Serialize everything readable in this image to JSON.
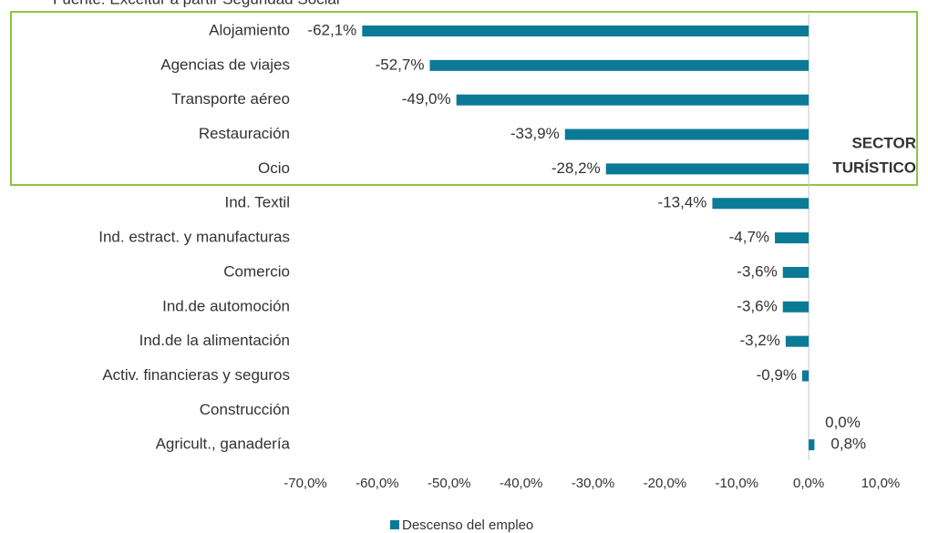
{
  "chart_data": {
    "type": "hbar",
    "source": "Fuente: Exceltur a partir Seguridad Social",
    "annotation": "SECTOR TURÍSTICO",
    "categories": [
      "Alojamiento",
      "Agencias de viajes",
      "Transporte aéreo",
      "Restauración",
      "Ocio",
      "Ind. Textil",
      "Ind. estract. y manufacturas",
      "Comercio",
      "Ind.de automoción",
      "Ind.de la alimentación",
      "Activ. financieras y seguros",
      "Construcción",
      "Agricult., ganadería"
    ],
    "series": [
      {
        "name": "Descenso del empleo",
        "color": "#0b7a97",
        "values": [
          -62.1,
          -52.7,
          -49.0,
          -33.9,
          -28.2,
          -13.4,
          -4.7,
          -3.6,
          -3.6,
          -3.2,
          -0.9,
          0.0,
          0.8
        ],
        "value_labels": [
          "-62,1%",
          "-52,7%",
          "-49,0%",
          "-33,9%",
          "-28,2%",
          "-13,4%",
          "-4,7%",
          "-3,6%",
          "-3,6%",
          "-3,2%",
          "-0,9%",
          "0,0%",
          "0,8%"
        ]
      }
    ],
    "xlim": [
      -70,
      10
    ],
    "xticks": [
      {
        "value": -70,
        "label": "-70,0%"
      },
      {
        "value": -60,
        "label": "-60,0%"
      },
      {
        "value": -50,
        "label": "-50,0%"
      },
      {
        "value": -40,
        "label": "-40,0%"
      },
      {
        "value": -30,
        "label": "-30,0%"
      },
      {
        "value": -20,
        "label": "-20,0%"
      },
      {
        "value": -10,
        "label": "-10,0%"
      },
      {
        "value": 0,
        "label": "0,0%"
      },
      {
        "value": 10,
        "label": "10,0%"
      }
    ],
    "legend": "bottom"
  }
}
